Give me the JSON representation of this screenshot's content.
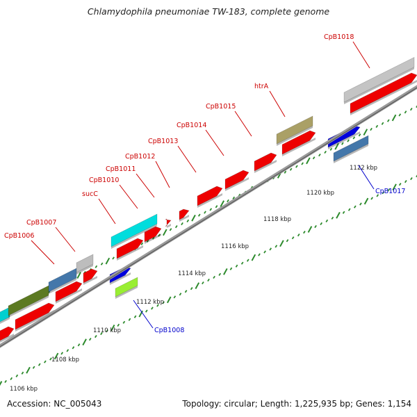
{
  "title": "Chlamydophila pneumoniae TW-183, complete genome",
  "footer": {
    "accession": "Accession: NC_005043",
    "summary": "Topology: circular; Length: 1,225,935 bp; Genes: 1,154"
  },
  "colors": {
    "backbone": "#8c8c8c",
    "tick": "#2c8a2c",
    "label_red": "#cc0000",
    "label_blue": "#0000cc"
  },
  "scale_labels": [
    "1106 kbp",
    "1108 kbp",
    "1110 kbp",
    "1112 kbp",
    "1114 kbp",
    "1116 kbp",
    "1118 kbp",
    "1120 kbp",
    "1122 kbp"
  ],
  "gene_labels": [
    {
      "name": "CpB1006",
      "strand": "forward"
    },
    {
      "name": "CpB1007",
      "strand": "forward"
    },
    {
      "name": "sucC",
      "strand": "forward"
    },
    {
      "name": "CpB1010",
      "strand": "forward"
    },
    {
      "name": "CpB1011",
      "strand": "forward"
    },
    {
      "name": "CpB1012",
      "strand": "forward"
    },
    {
      "name": "CpB1013",
      "strand": "forward"
    },
    {
      "name": "CpB1014",
      "strand": "forward"
    },
    {
      "name": "CpB1015",
      "strand": "forward"
    },
    {
      "name": "htrA",
      "strand": "forward"
    },
    {
      "name": "CpB1018",
      "strand": "forward"
    },
    {
      "name": "CpB1008",
      "strand": "reverse"
    },
    {
      "name": "CpB1017",
      "strand": "reverse"
    }
  ]
}
